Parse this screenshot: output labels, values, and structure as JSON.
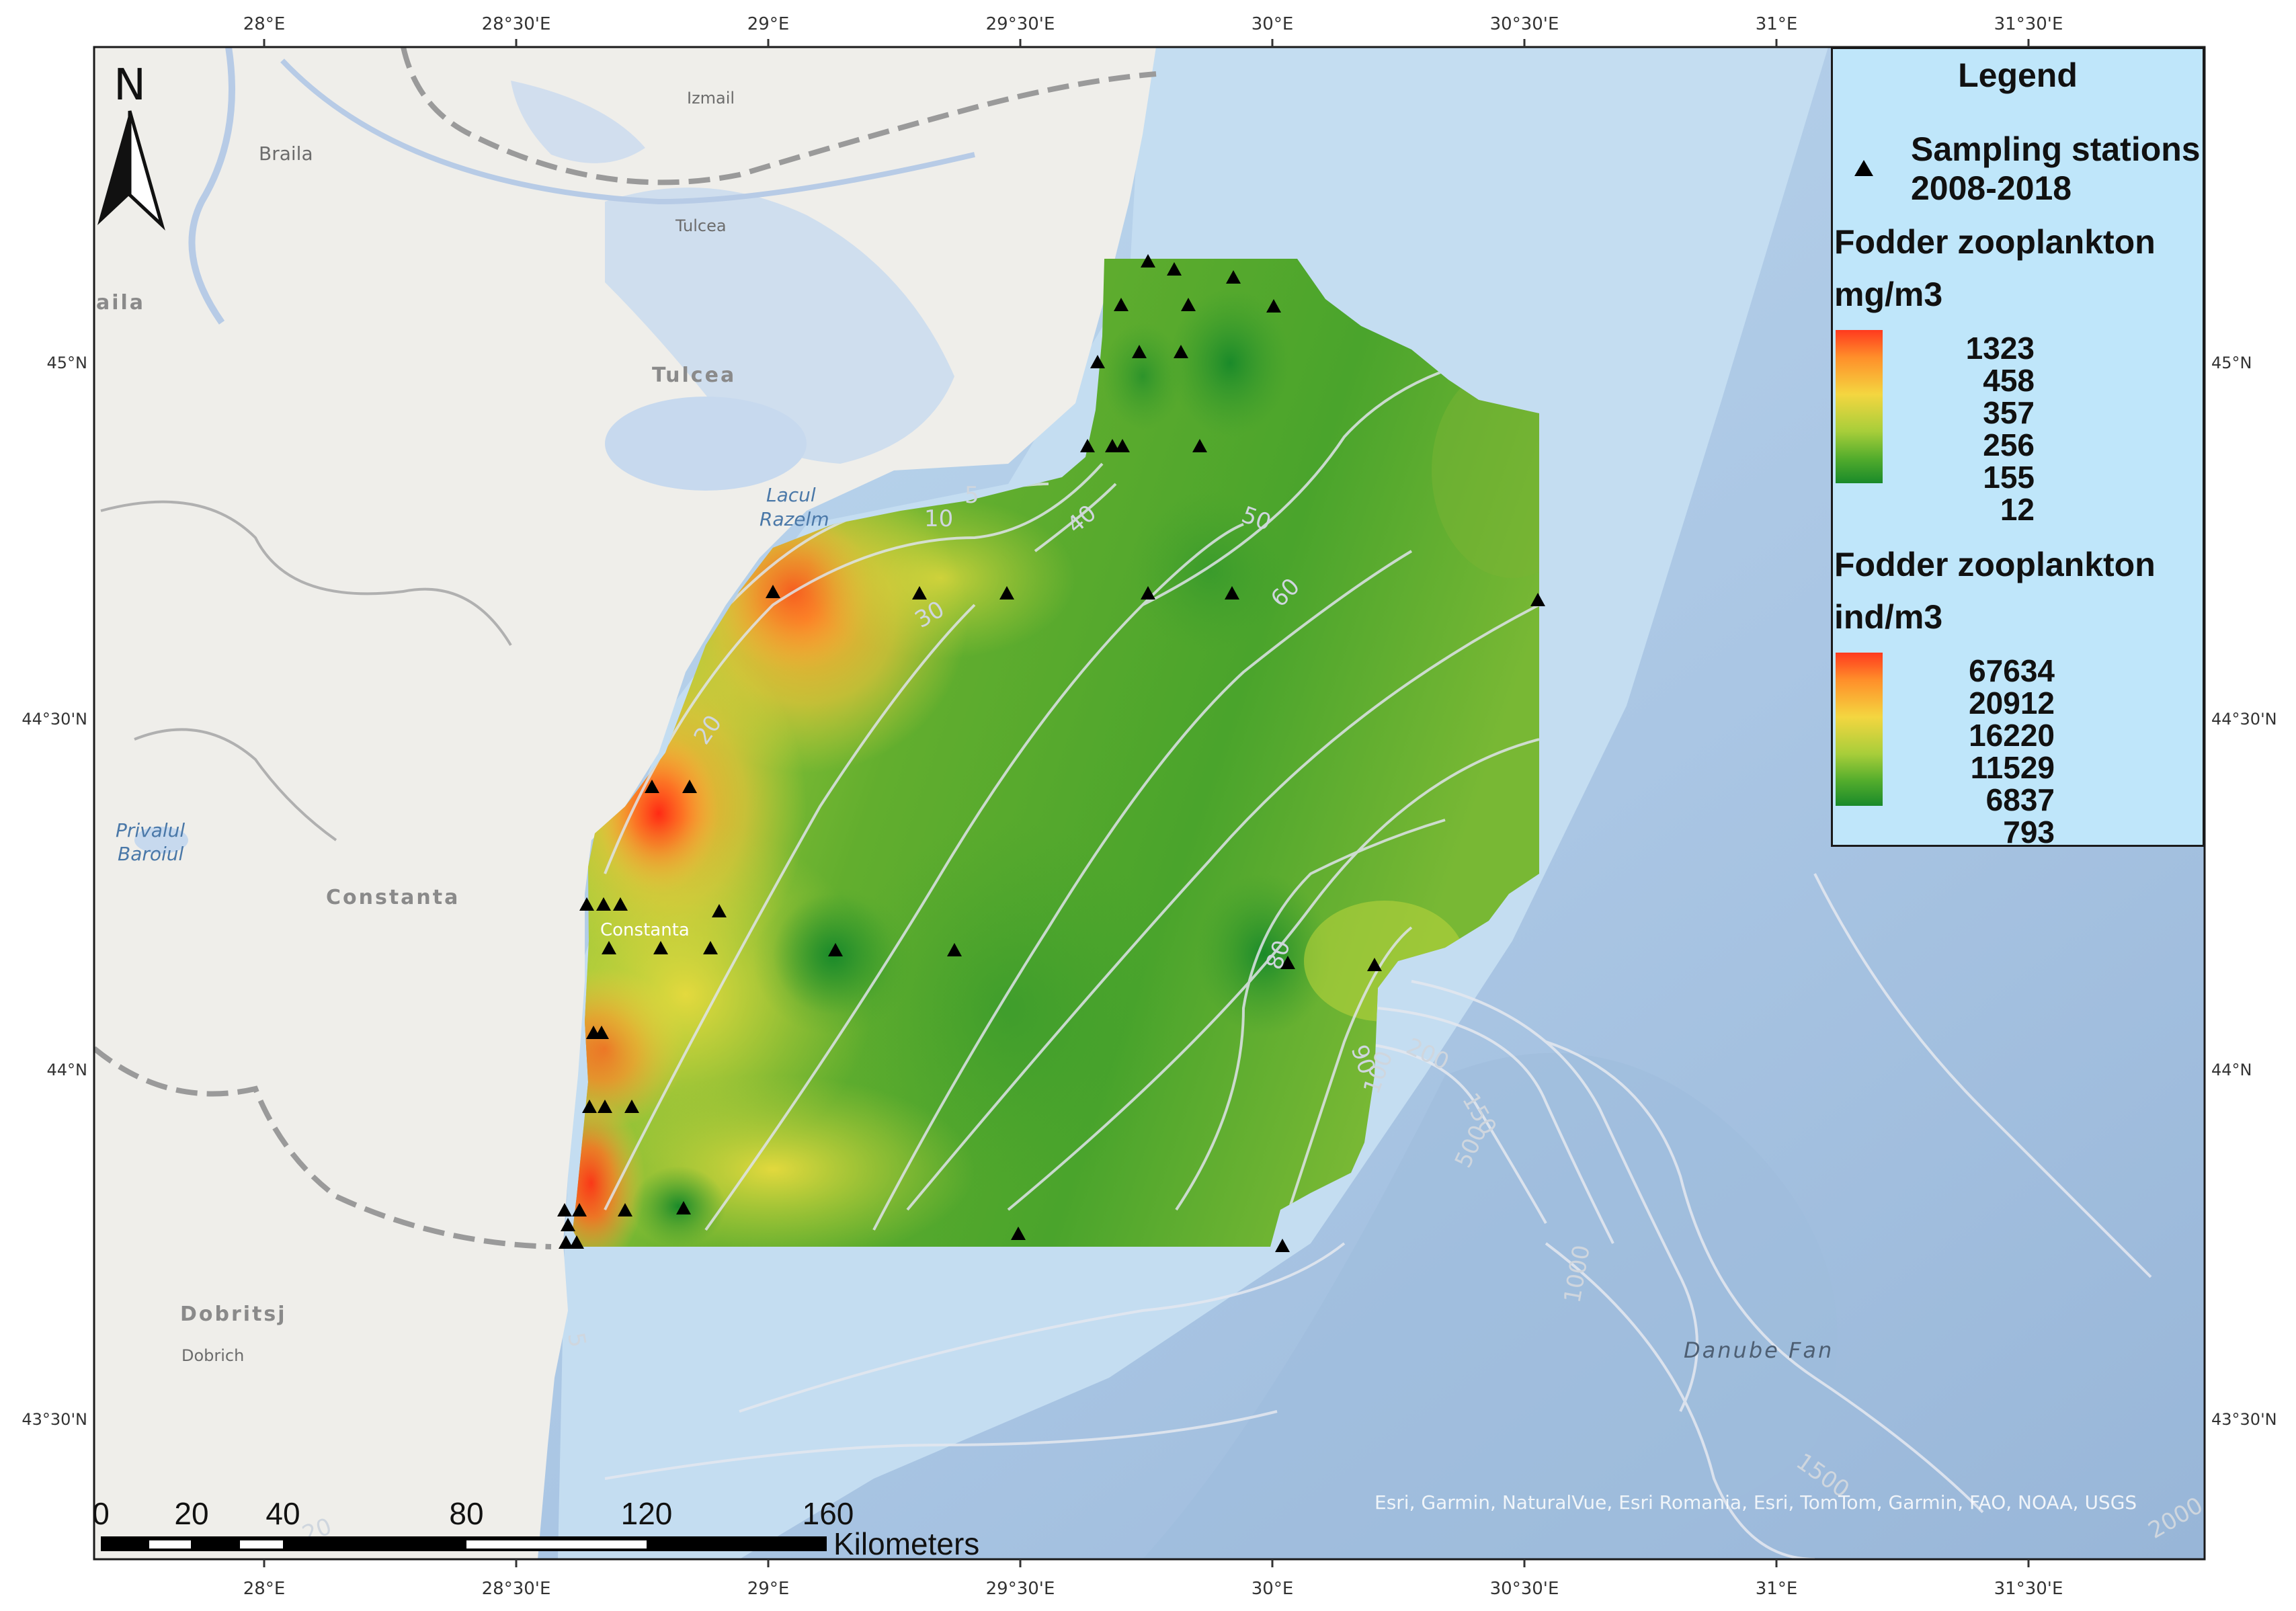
{
  "north_arrow": {
    "label": "N"
  },
  "graticule": {
    "lon_labels": [
      "28°E",
      "28°30'E",
      "29°E",
      "29°30'E",
      "30°E",
      "30°30'E",
      "31°E",
      "31°30'E"
    ],
    "lat_labels": [
      "45°N",
      "44°30'N",
      "44°N",
      "43°30'N"
    ]
  },
  "place_labels": {
    "izmail": "Izmail",
    "braila": "Braila",
    "braila_edge": "aila",
    "tulcea_city": "Tulcea",
    "tulcea_region": "Tulcea",
    "razelm_1": "Lacul",
    "razelm_2": "Razelm",
    "privalul_1": "Privalul",
    "privalul_2": "Baroiul",
    "constanta_region": "Constanta",
    "constanta_city": "Constanta",
    "dobritsj": "Dobritsj",
    "dobrich": "Dobrich",
    "danube_fan": "Danube Fan"
  },
  "depth_labels": [
    "5",
    "10",
    "20",
    "30",
    "40",
    "50",
    "60",
    "80",
    "90",
    "100",
    "150",
    "200",
    "500",
    "1000",
    "1500",
    "2000",
    "5",
    "20"
  ],
  "legend": {
    "title": "Legend",
    "stations_line1": "Sampling stations",
    "stations_line2": "2008-2018",
    "biomass_title": "Fodder zooplankton",
    "biomass_unit": "mg/m3",
    "biomass_values": [
      "1323",
      "458",
      "357",
      "256",
      "155",
      "12"
    ],
    "abundance_title": "Fodder zooplankton",
    "abundance_unit": "ind/m3",
    "abundance_values": [
      "67634",
      "20912",
      "16220",
      "11529",
      "6837",
      "793"
    ],
    "ramp_colors": [
      "#ff3a1e",
      "#ff8f2a",
      "#f4d640",
      "#a8ce3a",
      "#52ac2c",
      "#1a8a2a"
    ]
  },
  "scale_bar": {
    "ticks": [
      "0",
      "20",
      "40",
      "80",
      "120",
      "160"
    ],
    "unit": "Kilometers"
  },
  "attribution": "Esri, Garmin, NaturalVue, Esri Romania, Esri, TomTom, Garmin, FAO, NOAA, USGS",
  "colors": {
    "land": "#efeeea",
    "sea_shelf": "#bfdaf0",
    "sea_deep": "#a9c6e4",
    "high": "#ff3a1e",
    "low": "#1a8a2a"
  }
}
